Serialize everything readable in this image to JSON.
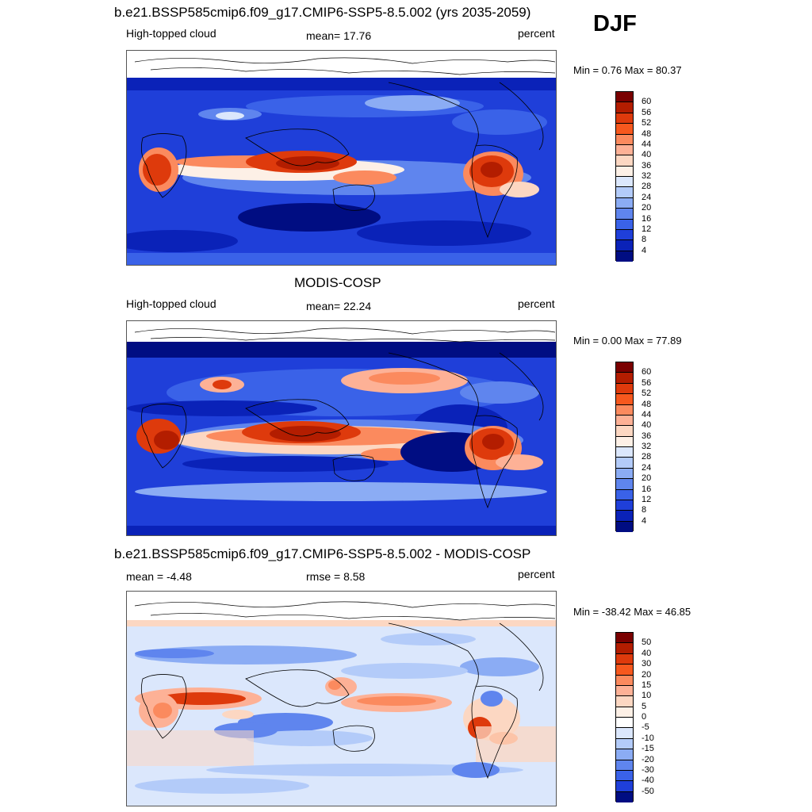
{
  "season": "DJF",
  "panels": [
    {
      "title": "b.e21.BSSP585cmip6.f09_g17.CMIP6-SSP5-8.5.002 (yrs 2035-2059)",
      "left_label": "High-topped cloud",
      "center_label": "mean=  17.76",
      "units": "percent",
      "minmax": "Min =   0.76 Max =  80.37"
    },
    {
      "title": "MODIS-COSP",
      "left_label": "High-topped cloud",
      "center_label": "mean=  22.24",
      "units": "percent",
      "minmax": "Min =   0.00 Max =  77.89"
    },
    {
      "title": "b.e21.BSSP585cmip6.f09_g17.CMIP6-SSP5-8.5.002 - MODIS-COSP",
      "left_label": "mean =  -4.48",
      "center_label": "rmse =   8.58",
      "units": "percent",
      "minmax": "Min = -38.42 Max =  46.85"
    }
  ],
  "colorbars": {
    "cloud": {
      "labels": [
        "60",
        "56",
        "52",
        "48",
        "44",
        "40",
        "36",
        "32",
        "28",
        "24",
        "20",
        "16",
        "12",
        "8",
        "4"
      ],
      "colors": [
        "#7a0000",
        "#b31d00",
        "#de3a0c",
        "#f6581e",
        "#fb8a5e",
        "#fdb196",
        "#fcd7c2",
        "#fdf0e6",
        "#dbe7fc",
        "#b3cbf9",
        "#8bacf4",
        "#5f85ee",
        "#3a62e8",
        "#1f3fd9",
        "#0a22b8",
        "#000d82"
      ]
    },
    "diff": {
      "labels": [
        "50",
        "40",
        "30",
        "20",
        "15",
        "10",
        "5",
        "0",
        "-5",
        "-10",
        "-15",
        "-20",
        "-30",
        "-40",
        "-50"
      ],
      "colors": [
        "#7a0000",
        "#b31d00",
        "#de3a0c",
        "#f6581e",
        "#fb8a5e",
        "#fdb196",
        "#fcd7c2",
        "#fdf0e6",
        "#ffffff",
        "#dbe7fc",
        "#b3cbf9",
        "#8bacf4",
        "#5f85ee",
        "#3a62e8",
        "#1f3fd9",
        "#000d82"
      ]
    }
  }
}
